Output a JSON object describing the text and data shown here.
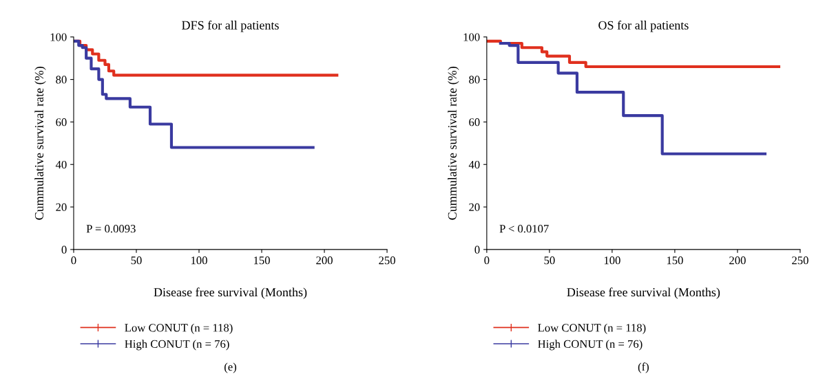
{
  "chart_data": [
    {
      "type": "step",
      "title": "DFS for all patients",
      "xlabel": "Disease free survival (Months)",
      "ylabel": "Cummulative survival rate (%)",
      "xlim": [
        0,
        250
      ],
      "xticks": [
        0,
        50,
        100,
        150,
        200,
        250
      ],
      "ylim": [
        0,
        100
      ],
      "yticks": [
        0,
        20,
        40,
        60,
        80,
        100
      ],
      "grid": false,
      "legend": "bottom",
      "marker": "none",
      "line_style": "solid",
      "annotations": [
        "P = 0.0093",
        "(e)"
      ],
      "series": [
        {
          "name": "Low CONUT (n = 118)",
          "color": "#e0301e",
          "x": [
            0,
            5,
            10,
            15,
            20,
            25,
            28,
            32,
            210
          ],
          "values": [
            98,
            96,
            94,
            92,
            89,
            87,
            84,
            82,
            82
          ]
        },
        {
          "name": "High CONUT (n = 76)",
          "color": "#3a3aa0",
          "x": [
            0,
            4,
            7,
            10,
            14,
            20,
            23,
            26,
            45,
            61,
            78,
            191
          ],
          "values": [
            98,
            96,
            95,
            90,
            85,
            80,
            73,
            71,
            67,
            59,
            48,
            48
          ]
        }
      ]
    },
    {
      "type": "step",
      "title": "OS for all patients",
      "xlabel": "Disease free survival (Months)",
      "ylabel": "Cummulative survival rate (%)",
      "xlim": [
        0,
        250
      ],
      "xticks": [
        0,
        50,
        100,
        150,
        200,
        250
      ],
      "ylim": [
        0,
        100
      ],
      "yticks": [
        0,
        20,
        40,
        60,
        80,
        100
      ],
      "grid": false,
      "legend": "bottom",
      "marker": "none",
      "line_style": "solid",
      "annotations": [
        "P < 0.0107",
        "(f)"
      ],
      "series": [
        {
          "name": "Low CONUT (n = 118)",
          "color": "#e0301e",
          "x": [
            0,
            11,
            28,
            44,
            48,
            66,
            79,
            233
          ],
          "values": [
            98,
            97,
            95,
            93,
            91,
            88,
            86,
            86
          ]
        },
        {
          "name": "High CONUT (n = 76)",
          "color": "#3a3aa0",
          "x": [
            11,
            18,
            25,
            40,
            57,
            72,
            109,
            140,
            222
          ],
          "values": [
            97,
            96,
            88,
            88,
            83,
            74,
            63,
            45,
            45
          ]
        }
      ]
    }
  ]
}
